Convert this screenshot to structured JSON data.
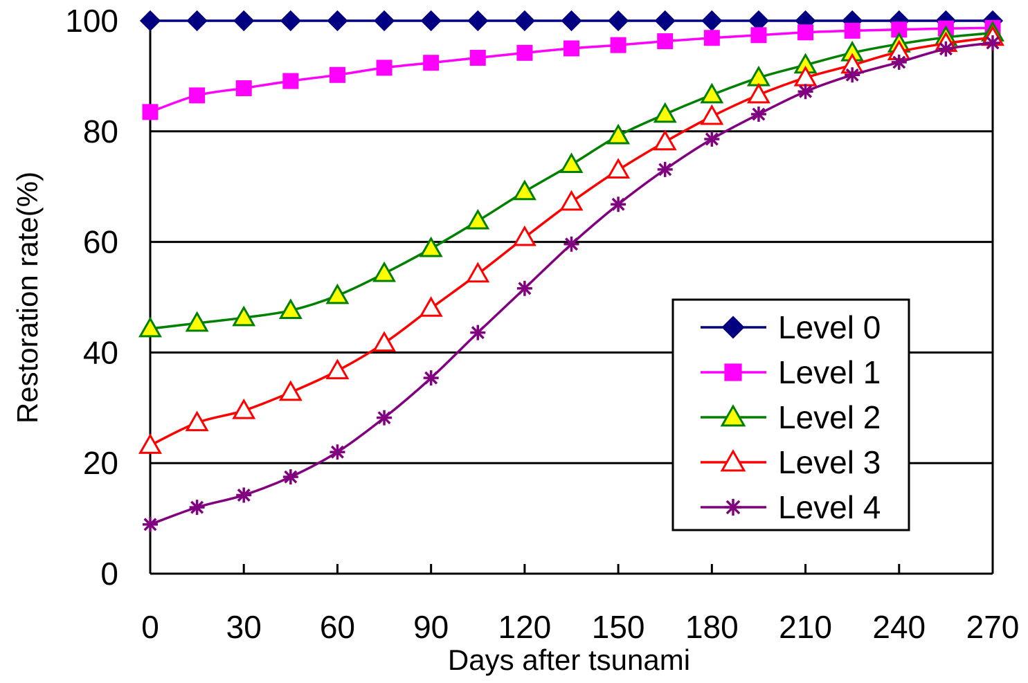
{
  "chart_data": {
    "type": "line",
    "title": "",
    "xlabel": "Days after tsunami",
    "ylabel": "Restoration rate(%)",
    "xlim": [
      0,
      270
    ],
    "ylim": [
      0,
      100
    ],
    "x_ticks": [
      "0",
      "30",
      "60",
      "90",
      "120",
      "150",
      "180",
      "210",
      "240",
      "270"
    ],
    "y_ticks": [
      "0",
      "20",
      "40",
      "60",
      "80",
      "100"
    ],
    "grid": "horizontal",
    "legend_position": "center-right",
    "x": [
      0,
      15,
      30,
      45,
      60,
      75,
      90,
      105,
      120,
      135,
      150,
      165,
      180,
      195,
      210,
      225,
      240,
      255,
      270
    ],
    "series": [
      {
        "name": "Level 0",
        "color": "#000080",
        "marker": "diamond",
        "values": [
          100,
          100,
          100,
          100,
          100,
          100,
          100,
          100,
          100,
          100,
          100,
          100,
          100,
          100,
          100,
          100,
          100,
          100,
          100
        ]
      },
      {
        "name": "Level 1",
        "color": "#FF00FF",
        "marker": "square",
        "values": [
          83.5,
          86.5,
          87.8,
          89.1,
          90.2,
          91.5,
          92.4,
          93.3,
          94.2,
          95.0,
          95.6,
          96.3,
          96.9,
          97.4,
          97.9,
          98.2,
          98.4,
          98.6,
          98.7
        ]
      },
      {
        "name": "Level 2",
        "color": "#008000",
        "marker": "triangle-filled",
        "marker_fill": "#FFFF00",
        "values": [
          44.3,
          45.3,
          46.3,
          47.6,
          50.3,
          54.3,
          58.8,
          63.8,
          69.1,
          74.0,
          79.2,
          83.1,
          86.6,
          89.7,
          92.0,
          94.2,
          95.8,
          97.0,
          97.8
        ]
      },
      {
        "name": "Level 3",
        "color": "#FF0000",
        "marker": "triangle-open",
        "marker_fill": "#FFFFFF",
        "values": [
          23.2,
          27.3,
          29.5,
          32.8,
          36.7,
          41.7,
          48.0,
          54.2,
          60.8,
          67.2,
          73.0,
          78.1,
          82.7,
          86.6,
          89.7,
          92.0,
          94.4,
          95.9,
          97.0
        ]
      },
      {
        "name": "Level 4",
        "color": "#800080",
        "marker": "star",
        "values": [
          8.9,
          12.0,
          14.2,
          17.5,
          22.0,
          28.2,
          35.4,
          43.6,
          51.6,
          59.6,
          66.8,
          73.1,
          78.6,
          83.1,
          87.2,
          90.2,
          92.5,
          94.9,
          96.0
        ]
      }
    ]
  }
}
